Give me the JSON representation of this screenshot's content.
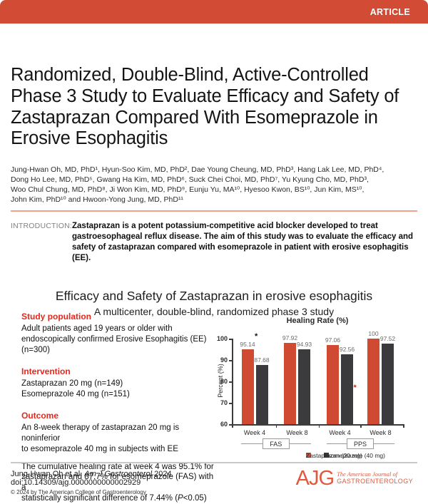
{
  "banner": {
    "label": "ARTICLE"
  },
  "article": {
    "title": "Randomized, Double-Blind, Active-Controlled\nPhase 3 Study to Evaluate Efficacy and Safety of\nZastaprazan Compared With Esomeprazole in\nErosive Esophagitis",
    "authors": "Jung-Hwan Oh, MD, PhD¹, Hyun-Soo Kim, MD, PhD², Dae Young Cheung, MD, PhD³, Hang Lak Lee, MD, PhD⁴,\nDong Ho Lee, MD, PhD⁵, Gwang Ha Kim, MD, PhD⁶, Suck Chei Choi, MD, PhD⁷, Yu Kyung Cho, MD, PhD³,\nWoo Chul Chung, MD, PhD⁸, Ji Won Kim, MD, PhD⁹, Eunju Yu, MA¹⁰, Hyesoo Kwon, BS¹⁰, Jun Kim, MS¹⁰,\nJohn Kim, PhD¹⁰ and Hwoon-Yong Jung, MD, PhD¹¹",
    "intro_label": "INTRODUCTION:",
    "intro_text": "Zastaprazan is a potent potassium-competitive acid blocker developed to treat gastroesophageal reflux disease. The aim of this study was to evaluate the efficacy and safety of zastaprazan compared with esomeprazole in patient with erosive esophagitis (EE)."
  },
  "abstract": {
    "heading": "Efficacy and Safety of Zastaprazan in erosive esophagitis",
    "subheading": "A multicenter, double-blind, randomized phase 3 study",
    "study_population": {
      "heading": "Study population",
      "body": "Adult patients aged 19 years or older with\nendoscopically confirmed Erosive Esophagitis (EE)\n(n=300)"
    },
    "intervention": {
      "heading": "Intervention",
      "body": "Zastaprazan 20 mg (n=149)\nEsomeprazole 40 mg (n=151)"
    },
    "outcome": {
      "heading": "Outcome",
      "para1": "An 8-week therapy of zastaprazan 20 mg is noninferior\nto esomeprazole 40 mg in subjects with EE",
      "para2_pre": "The cumulative healing rate at week 4 was 95.1% for\nzastaprazan and 87.7% for esomeprazole (FAS) with a\nstatistically significant difference of 7.44% (",
      "para2_italic": "P",
      "para2_post": "<0.05)"
    }
  },
  "chart_data": {
    "type": "bar",
    "title": "Healing Rate (%)",
    "ylabel": "Percent (%)",
    "ylim": [
      60,
      100
    ],
    "yticks": [
      60,
      70,
      80,
      90,
      100
    ],
    "categories": [
      "Week 4",
      "Week 8",
      "Week 4",
      "Week 8"
    ],
    "group_brackets": [
      {
        "label": "FAS",
        "groups": [
          0,
          1
        ]
      },
      {
        "label": "PPS",
        "groups": [
          2,
          3
        ]
      }
    ],
    "series": [
      {
        "name": "Zastaprazan (20 mg)",
        "color": "#d04a32",
        "values": [
          95.14,
          97.92,
          97.06,
          100
        ]
      },
      {
        "name": "Esomeprazole (40 mg)",
        "color": "#3b3b3d",
        "values": [
          87.68,
          94.93,
          92.56,
          97.52
        ]
      }
    ],
    "annotations": [
      {
        "text": "*",
        "group": 0,
        "y": 101.5,
        "dx": 0,
        "color": "#111111"
      },
      {
        "text": "*",
        "group": 2,
        "y": 77.3,
        "dx": 19,
        "color": "#cc2a1e"
      }
    ],
    "legend_position": "bottom",
    "grid": false
  },
  "footer": {
    "citation_pre": "Jung-Hwan Oh et al. ",
    "citation_journal": "Am J Gastroenterol",
    "citation_post": " 2024 doi:10.14309/ajg.0000000000002929",
    "copyright": "© 2024 by The American College of Gastroenterology",
    "logo": {
      "acronym": "AJG",
      "line1": "The American Journal of",
      "line2": "GASTROENTEROLOGY"
    }
  }
}
